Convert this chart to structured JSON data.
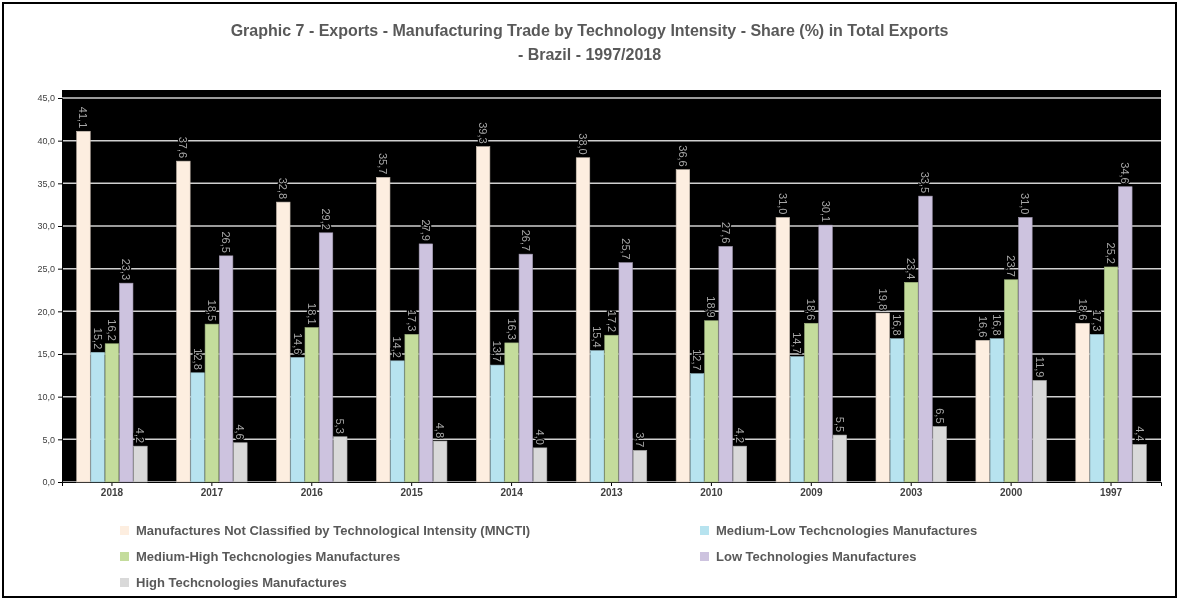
{
  "chart_data": {
    "type": "bar",
    "title": "Graphic 7 - Exports - Manufacturing Trade by Technology Intensity - Share (%) in Total Exports - Brazil - 1997/2018",
    "categories": [
      "2018",
      "2017",
      "2016",
      "2015",
      "2014",
      "2013",
      "2010",
      "2009",
      "2003",
      "2000",
      "1997"
    ],
    "series": [
      {
        "name": "Manufactures Not Classified by Technological Intensity (MNCTI)",
        "color": "#fdeee0",
        "values": [
          41.1,
          37.6,
          32.8,
          35.7,
          39.3,
          38.0,
          36.6,
          31.0,
          19.8,
          16.6,
          18.6
        ],
        "value_labels": [
          "41,1",
          "37,6",
          "32,8",
          "35,7",
          "39,3",
          "38,0",
          "36,6",
          "31,0",
          "19,8",
          "16,6",
          "18,6"
        ]
      },
      {
        "name": "Medium-Low Techcnologies Manufactures",
        "color": "#b7e3ef",
        "values": [
          15.2,
          12.8,
          14.6,
          14.2,
          13.7,
          15.4,
          12.7,
          14.7,
          16.8,
          16.8,
          17.3
        ],
        "value_labels": [
          "15,2",
          "12,8",
          "14,6",
          "14,2",
          "13,7",
          "15,4",
          "12,7",
          "14,7",
          "16,8",
          "16,8",
          "17,3"
        ]
      },
      {
        "name": "Medium-High Techcnologies Manufactures",
        "color": "#c4dc9c",
        "values": [
          16.2,
          18.5,
          18.1,
          17.3,
          16.3,
          17.2,
          18.9,
          18.6,
          23.4,
          23.7,
          25.2
        ],
        "value_labels": [
          "16,2",
          "18,5",
          "18,1",
          "17,3",
          "16,3",
          "17,2",
          "18,9",
          "18,6",
          "23,4",
          "23,7",
          "25,2"
        ]
      },
      {
        "name": "Low Technologies Manufactures",
        "color": "#cdc3df",
        "values": [
          23.3,
          26.5,
          29.2,
          27.9,
          26.7,
          25.7,
          27.6,
          30.1,
          33.5,
          31.0,
          34.6
        ],
        "value_labels": [
          "23,3",
          "26,5",
          "29,2",
          "27,9",
          "26,7",
          "25,7",
          "27,6",
          "30,1",
          "33,5",
          "31,0",
          "34,6"
        ]
      },
      {
        "name": "High Techcnologies Manufactures",
        "color": "#d9d9d9",
        "values": [
          4.2,
          4.6,
          5.3,
          4.8,
          4.0,
          3.7,
          4.2,
          5.5,
          6.5,
          11.9,
          4.4
        ],
        "value_labels": [
          "4,2",
          "4,6",
          "5,3",
          "4,8",
          "4,0",
          "3,7",
          "4,2",
          "5,5",
          "6,5",
          "11,9",
          "4,4"
        ]
      }
    ],
    "ylim": [
      0,
      45
    ],
    "yticks": [
      {
        "value": 0,
        "label": "0,0"
      },
      {
        "value": 5,
        "label": "5,0"
      },
      {
        "value": 10,
        "label": "10,0"
      },
      {
        "value": 15,
        "label": "15,0"
      },
      {
        "value": 20,
        "label": "20,0"
      },
      {
        "value": 25,
        "label": "25,0"
      },
      {
        "value": 30,
        "label": "30,0"
      },
      {
        "value": 35,
        "label": "35,0"
      },
      {
        "value": 40,
        "label": "40,0"
      },
      {
        "value": 45,
        "label": "45,0"
      }
    ],
    "grid": "y",
    "legend": "bottom"
  }
}
